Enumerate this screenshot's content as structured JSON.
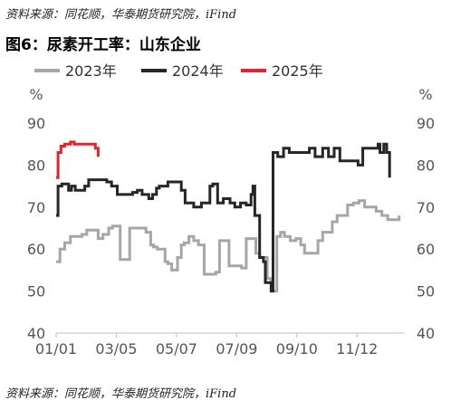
{
  "source_top": "资料来源：同花顺，华泰期货研究院，iFind",
  "source_bottom": "资料来源：同花顺，华泰期货研究院，iFind",
  "chart_data": {
    "type": "line",
    "title": "图6：尿素开工率：山东企业",
    "y_unit": "%",
    "ylim": [
      40,
      90
    ],
    "yticks": [
      40,
      50,
      60,
      70,
      80,
      90
    ],
    "xlim": [
      1,
      365
    ],
    "xticks": [
      {
        "day": 1,
        "label": "01/01"
      },
      {
        "day": 64,
        "label": "03/05"
      },
      {
        "day": 127,
        "label": "05/07"
      },
      {
        "day": 190,
        "label": "07/09"
      },
      {
        "day": 253,
        "label": "09/10"
      },
      {
        "day": 316,
        "label": "11/12"
      }
    ],
    "grid": false,
    "legend_position": "top",
    "series": [
      {
        "name": "2023年",
        "color": "#a6a6a6",
        "points": [
          [
            1,
            57
          ],
          [
            5,
            60
          ],
          [
            10,
            61.5
          ],
          [
            16,
            63
          ],
          [
            22,
            63
          ],
          [
            28,
            63.5
          ],
          [
            33,
            64.5
          ],
          [
            40,
            64.5
          ],
          [
            45,
            62.5
          ],
          [
            50,
            63.5
          ],
          [
            56,
            65
          ],
          [
            60,
            65.5
          ],
          [
            64,
            65.5
          ],
          [
            68,
            57.5
          ],
          [
            74,
            57.5
          ],
          [
            78,
            65
          ],
          [
            84,
            65
          ],
          [
            90,
            65
          ],
          [
            95,
            64
          ],
          [
            100,
            61
          ],
          [
            103,
            60.5
          ],
          [
            107,
            60
          ],
          [
            110,
            60
          ],
          [
            115,
            57
          ],
          [
            118,
            56.5
          ],
          [
            122,
            55
          ],
          [
            128,
            58
          ],
          [
            132,
            61
          ],
          [
            135,
            61.5
          ],
          [
            140,
            63
          ],
          [
            145,
            62
          ],
          [
            150,
            61
          ],
          [
            156,
            54
          ],
          [
            168,
            54.5
          ],
          [
            172,
            62
          ],
          [
            178,
            62
          ],
          [
            182,
            56
          ],
          [
            188,
            56
          ],
          [
            195,
            55.5
          ],
          [
            200,
            62.5
          ],
          [
            205,
            62.5
          ],
          [
            210,
            59
          ],
          [
            214,
            58
          ],
          [
            222,
            53
          ],
          [
            226,
            50
          ],
          [
            232,
            63
          ],
          [
            236,
            64
          ],
          [
            240,
            63
          ],
          [
            246,
            62
          ],
          [
            252,
            62.5
          ],
          [
            257,
            61
          ],
          [
            261,
            59
          ],
          [
            267,
            59
          ],
          [
            275,
            62
          ],
          [
            280,
            64
          ],
          [
            285,
            64
          ],
          [
            290,
            66.5
          ],
          [
            295,
            68
          ],
          [
            302,
            68
          ],
          [
            306,
            70.5
          ],
          [
            312,
            71
          ],
          [
            318,
            71.5
          ],
          [
            324,
            70
          ],
          [
            330,
            70
          ],
          [
            336,
            69
          ],
          [
            342,
            68
          ],
          [
            348,
            67
          ],
          [
            355,
            67
          ],
          [
            360,
            68
          ]
        ]
      },
      {
        "name": "2024年",
        "color": "#262626",
        "points": [
          [
            1,
            68
          ],
          [
            3,
            75
          ],
          [
            7,
            75.5
          ],
          [
            14,
            74
          ],
          [
            17,
            75
          ],
          [
            21,
            74
          ],
          [
            28,
            74
          ],
          [
            31,
            75
          ],
          [
            35,
            76.5
          ],
          [
            42,
            76.5
          ],
          [
            48,
            76.5
          ],
          [
            54,
            76
          ],
          [
            59,
            75
          ],
          [
            65,
            73
          ],
          [
            70,
            73
          ],
          [
            76,
            73
          ],
          [
            81,
            73.5
          ],
          [
            86,
            74
          ],
          [
            91,
            73
          ],
          [
            98,
            72
          ],
          [
            102,
            73
          ],
          [
            106,
            74.5
          ],
          [
            109,
            75
          ],
          [
            114,
            75
          ],
          [
            118,
            76
          ],
          [
            123,
            76
          ],
          [
            128,
            76
          ],
          [
            132,
            74
          ],
          [
            136,
            71
          ],
          [
            140,
            71
          ],
          [
            145,
            70
          ],
          [
            148,
            70
          ],
          [
            153,
            71
          ],
          [
            158,
            71
          ],
          [
            162,
            75
          ],
          [
            165,
            75.5
          ],
          [
            170,
            71
          ],
          [
            176,
            72
          ],
          [
            183,
            71
          ],
          [
            188,
            70
          ],
          [
            194,
            71
          ],
          [
            200,
            70.5
          ],
          [
            205,
            73
          ],
          [
            207,
            75
          ],
          [
            209,
            68
          ],
          [
            214,
            58
          ],
          [
            218,
            57
          ],
          [
            220,
            52
          ],
          [
            224,
            52
          ],
          [
            226,
            50
          ],
          [
            228,
            83
          ],
          [
            233,
            82
          ],
          [
            239,
            84
          ],
          [
            245,
            83
          ],
          [
            250,
            83
          ],
          [
            256,
            83
          ],
          [
            260,
            83
          ],
          [
            266,
            84
          ],
          [
            272,
            82
          ],
          [
            280,
            84
          ],
          [
            286,
            82
          ],
          [
            292,
            84
          ],
          [
            298,
            81
          ],
          [
            305,
            81
          ],
          [
            310,
            81
          ],
          [
            317,
            80
          ],
          [
            322,
            84
          ],
          [
            329,
            84
          ],
          [
            334,
            84
          ],
          [
            338,
            85
          ],
          [
            340,
            83
          ],
          [
            344,
            85
          ],
          [
            347,
            83
          ],
          [
            350,
            77
          ]
        ]
      },
      {
        "name": "2025年",
        "color": "#e0262c",
        "points": [
          [
            1,
            77
          ],
          [
            3,
            83
          ],
          [
            6,
            84.5
          ],
          [
            10,
            85
          ],
          [
            16,
            85.5
          ],
          [
            20,
            85
          ],
          [
            26,
            85
          ],
          [
            32,
            85
          ],
          [
            38,
            85
          ],
          [
            42,
            84
          ],
          [
            45,
            82
          ]
        ]
      }
    ]
  }
}
